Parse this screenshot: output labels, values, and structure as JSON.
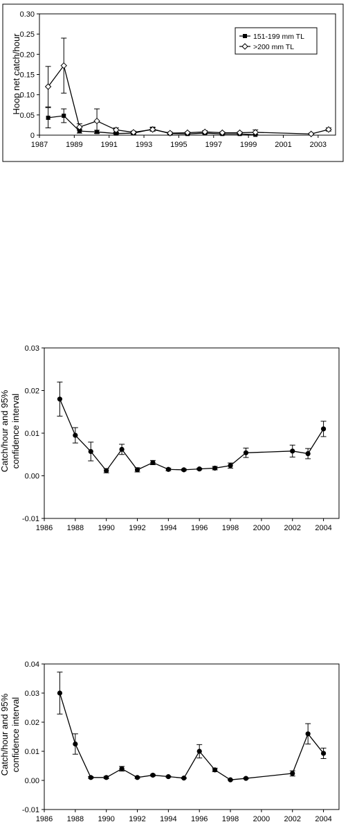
{
  "chart_data": [
    {
      "type": "line",
      "ylabel": "Hoop net catch/hour",
      "ylim": [
        0,
        0.3
      ],
      "yticks": [
        "0",
        "0.05",
        "0.10",
        "0.15",
        "0.20",
        "0.25",
        "0.30"
      ],
      "xlim": [
        1987,
        2004
      ],
      "xticks": [
        "1987",
        "1989",
        "1991",
        "1993",
        "1995",
        "1997",
        "1999",
        "2001",
        "2003"
      ],
      "grid": false,
      "legend": "top-right",
      "series": [
        {
          "name": "151-199 mm TL",
          "marker": "square-filled",
          "x": [
            1987.5,
            1988.4,
            1989.3,
            1990.3,
            1991.4,
            1992.4,
            1993.5,
            1994.5,
            1995.5,
            1996.5,
            1997.5,
            1998.5,
            1999.4
          ],
          "y": [
            0.043,
            0.048,
            0.01,
            0.008,
            0.004,
            0.005,
            0.015,
            0.004,
            0.003,
            0.005,
            0.003,
            0.003,
            0.001
          ],
          "err": [
            0.025,
            0.017,
            0.005,
            0.004,
            0.002,
            0.003,
            0.005,
            0.002,
            0.001,
            0.002,
            0.001,
            0.001,
            0.001
          ]
        },
        {
          "name": ">200 mm TL",
          "marker": "diamond-open",
          "x": [
            1987.5,
            1988.4,
            1989.3,
            1990.3,
            1991.4,
            1992.4,
            1993.5,
            1994.5,
            1995.5,
            1996.5,
            1997.5,
            1998.5,
            1999.4,
            2002.6,
            2003.6
          ],
          "y": [
            0.12,
            0.172,
            0.02,
            0.035,
            0.013,
            0.007,
            0.014,
            0.005,
            0.006,
            0.008,
            0.006,
            0.006,
            0.007,
            0.003,
            0.014
          ],
          "err": [
            0.05,
            0.068,
            0.008,
            0.03,
            0.005,
            0.003,
            0.004,
            0.002,
            0.002,
            0.003,
            0.002,
            0.002,
            0.006,
            0.002,
            0.004
          ]
        }
      ]
    },
    {
      "type": "line",
      "ylabel": "Catch/hour and 95% confidence interval",
      "ylabel_lines": [
        "Catch/hour and 95%",
        "confidence interval"
      ],
      "ylim": [
        -0.01,
        0.03
      ],
      "yticks": [
        "-0.01",
        "0.00",
        "0.01",
        "0.02",
        "0.03"
      ],
      "xlim": [
        1986,
        2005
      ],
      "xticks": [
        "1986",
        "1988",
        "1990",
        "1992",
        "1994",
        "1996",
        "1998",
        "2000",
        "2002",
        "2004"
      ],
      "grid": false,
      "series": [
        {
          "marker": "circle-filled",
          "x": [
            1987,
            1988,
            1989,
            1990,
            1991,
            1992,
            1993,
            1994,
            1995,
            1996,
            1997,
            1998,
            1999,
            2002,
            2003,
            2004
          ],
          "y": [
            0.018,
            0.0095,
            0.0057,
            0.0012,
            0.0062,
            0.0014,
            0.0031,
            0.0015,
            0.0014,
            0.0016,
            0.0018,
            0.0024,
            0.0054,
            0.0058,
            0.0052,
            0.011
          ],
          "err": [
            0.004,
            0.0018,
            0.0022,
            0.0005,
            0.0012,
            0.0005,
            0.0005,
            0.0003,
            0.0002,
            0.0002,
            0.0004,
            0.0006,
            0.0011,
            0.0014,
            0.0012,
            0.0018
          ]
        }
      ]
    },
    {
      "type": "line",
      "ylabel": "Catch/hour and 95% confidence interval",
      "ylabel_lines": [
        "Catch/hour and 95%",
        "confidence interval"
      ],
      "ylim": [
        -0.01,
        0.04
      ],
      "yticks": [
        "-0.01",
        "0.00",
        "0.01",
        "0.02",
        "0.03",
        "0.04"
      ],
      "xlim": [
        1986,
        2005
      ],
      "xticks": [
        "1986",
        "1988",
        "1990",
        "1992",
        "1994",
        "1996",
        "1998",
        "2000",
        "2002",
        "2004"
      ],
      "grid": false,
      "series": [
        {
          "marker": "circle-filled",
          "x": [
            1987,
            1988,
            1989,
            1990,
            1991,
            1992,
            1993,
            1994,
            1995,
            1996,
            1997,
            1998,
            1999,
            2002,
            2003,
            2004
          ],
          "y": [
            0.03,
            0.0125,
            0.001,
            0.001,
            0.004,
            0.001,
            0.0018,
            0.0013,
            0.0008,
            0.01,
            0.0036,
            0.0002,
            0.0007,
            0.0024,
            0.016,
            0.0093
          ],
          "err": [
            0.0072,
            0.0035,
            0.0003,
            0.0004,
            0.0008,
            0.0003,
            0.0003,
            0.0002,
            0.0002,
            0.0023,
            0.0006,
            0.0001,
            0.0002,
            0.0009,
            0.0035,
            0.0018
          ]
        }
      ]
    }
  ]
}
